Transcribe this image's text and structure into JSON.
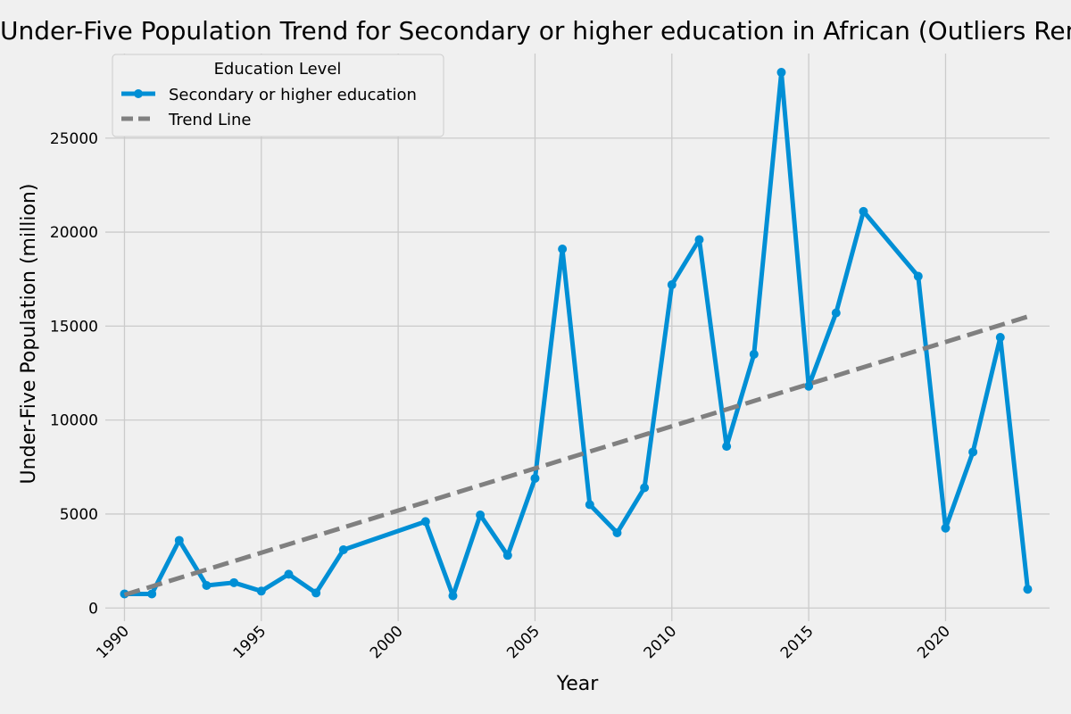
{
  "chart_data": {
    "type": "line",
    "title": "Under-Five Population Trend for Secondary or higher education in African (Outliers Removed)",
    "xlabel": "Year",
    "ylabel": "Under-Five Population (million)",
    "xlim": [
      1989.3,
      2023.8
    ],
    "ylim": [
      -700,
      29500
    ],
    "x_ticks": [
      1990,
      1995,
      2000,
      2005,
      2010,
      2015,
      2020
    ],
    "y_ticks": [
      0,
      5000,
      10000,
      15000,
      20000,
      25000
    ],
    "grid": true,
    "legend": {
      "title": "Education Level",
      "placement": "top-left"
    },
    "series": [
      {
        "name": "Secondary or higher education",
        "color": "#008fd5",
        "style": "solid-with-markers",
        "x": [
          1990,
          1991,
          1992,
          1993,
          1994,
          1995,
          1996,
          1997,
          1998,
          2001,
          2002,
          2003,
          2004,
          2005,
          2006,
          2007,
          2008,
          2009,
          2010,
          2011,
          2012,
          2013,
          2014,
          2015,
          2016,
          2017,
          2019,
          2020,
          2021,
          2022,
          2023
        ],
        "y": [
          750,
          750,
          3600,
          1200,
          1350,
          900,
          1800,
          800,
          3100,
          4600,
          650,
          4950,
          2800,
          6900,
          19100,
          5500,
          4000,
          6400,
          17200,
          19600,
          8600,
          13500,
          28500,
          11800,
          15700,
          21100,
          17650,
          4250,
          8300,
          14400,
          1000
        ]
      },
      {
        "name": "Trend Line",
        "color": "#808080",
        "style": "dashed",
        "x": [
          1990,
          2023
        ],
        "y": [
          700,
          15500
        ]
      }
    ]
  }
}
